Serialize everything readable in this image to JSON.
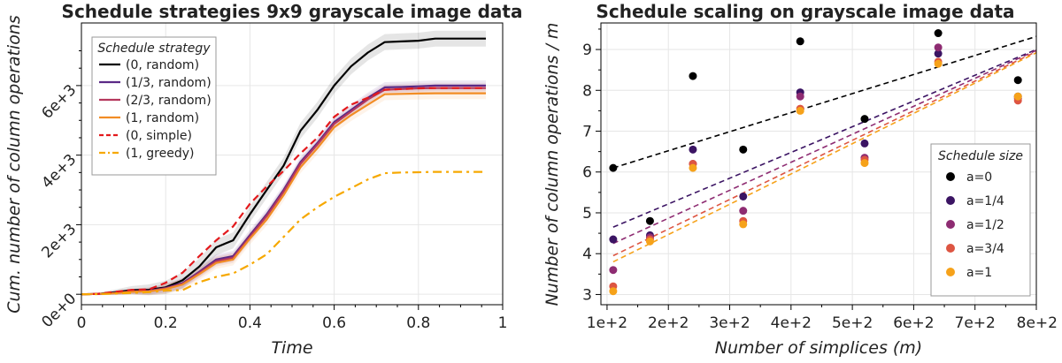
{
  "chart_data": [
    {
      "type": "line",
      "title": "Schedule strategies 9x9 grayscale image data",
      "xlabel": "Time",
      "ylabel": "Cum. number of column operations",
      "xlim": [
        0,
        1
      ],
      "ylim": [
        -300,
        7800
      ],
      "x_ticks": [
        0,
        0.2,
        0.4,
        0.6,
        0.8,
        1
      ],
      "x_tick_labels": [
        "0",
        "0.2",
        "0.4",
        "0.6",
        "0.8",
        "1"
      ],
      "y_ticks": [
        0,
        2000,
        4000,
        6000
      ],
      "y_tick_labels": [
        "0e+0",
        "2e+3",
        "4e+3",
        "6e+3"
      ],
      "grid": true,
      "legend_title": "Schedule strategy",
      "legend_position": "top-left",
      "x": [
        0,
        0.04,
        0.08,
        0.12,
        0.16,
        0.2,
        0.24,
        0.28,
        0.32,
        0.36,
        0.4,
        0.44,
        0.48,
        0.52,
        0.56,
        0.6,
        0.64,
        0.68,
        0.72,
        0.76,
        0.8,
        0.84,
        0.88,
        0.92,
        0.96
      ],
      "series": [
        {
          "name": "(0, random)",
          "color": "#000000",
          "dash": "solid",
          "band": 230,
          "values": [
            0,
            10,
            60,
            120,
            130,
            200,
            400,
            800,
            1350,
            1550,
            2300,
            3000,
            3700,
            4700,
            5300,
            6000,
            6550,
            6950,
            7250,
            7270,
            7290,
            7350,
            7350,
            7350,
            7350
          ]
        },
        {
          "name": "(1/3, random)",
          "color": "#5b2a86",
          "dash": "solid",
          "band": 150,
          "values": [
            0,
            10,
            40,
            80,
            100,
            180,
            320,
            650,
            1000,
            1100,
            1700,
            2300,
            3000,
            3800,
            4350,
            4950,
            5300,
            5650,
            5950,
            5960,
            5980,
            6000,
            6000,
            6000,
            6000
          ]
        },
        {
          "name": "(2/3, random)",
          "color": "#b5385d",
          "dash": "solid",
          "band": 150,
          "values": [
            0,
            10,
            40,
            80,
            90,
            170,
            300,
            620,
            950,
            1050,
            1650,
            2250,
            2950,
            3750,
            4300,
            4900,
            5250,
            5600,
            5880,
            5900,
            5920,
            5930,
            5930,
            5930,
            5930
          ]
        },
        {
          "name": "(1, random)",
          "color": "#f28d25",
          "dash": "solid",
          "band": 170,
          "values": [
            0,
            10,
            30,
            70,
            80,
            150,
            280,
            580,
            900,
            1000,
            1600,
            2150,
            2850,
            3650,
            4200,
            4800,
            5150,
            5450,
            5750,
            5760,
            5770,
            5780,
            5780,
            5780,
            5780
          ]
        },
        {
          "name": "(0, simple)",
          "color": "#e3191c",
          "dash": "8,5",
          "band": 0,
          "values": [
            0,
            15,
            70,
            130,
            140,
            330,
            620,
            1100,
            1550,
            1950,
            2600,
            3100,
            3550,
            4050,
            4500,
            5100,
            5450,
            5650,
            5880,
            5900,
            5920,
            5930,
            5930,
            5930,
            5930
          ]
        },
        {
          "name": "(1, greedy)",
          "color": "#f6a800",
          "dash": "10,5,3,5",
          "band": 0,
          "values": [
            0,
            5,
            20,
            40,
            60,
            110,
            120,
            350,
            500,
            600,
            850,
            1150,
            1650,
            2150,
            2500,
            2800,
            3050,
            3300,
            3480,
            3500,
            3510,
            3520,
            3520,
            3520,
            3520
          ]
        }
      ]
    },
    {
      "type": "scatter",
      "title": "Schedule scaling on grayscale image data",
      "xlabel": "Number of simplices (m)",
      "ylabel": "Number of column operations / m",
      "xlim": [
        90,
        800
      ],
      "ylim": [
        2.75,
        9.65
      ],
      "x_ticks": [
        100,
        200,
        300,
        400,
        500,
        600,
        700,
        800
      ],
      "x_tick_labels": [
        "1e+2",
        "2e+2",
        "3e+2",
        "4e+2",
        "5e+2",
        "6e+2",
        "7e+2",
        "8e+2"
      ],
      "y_ticks": [
        3,
        4,
        5,
        6,
        7,
        8,
        9
      ],
      "y_tick_labels": [
        "3",
        "4",
        "5",
        "6",
        "7",
        "8",
        "9"
      ],
      "grid": true,
      "legend_title": "Schedule size",
      "legend_position": "bottom-right",
      "x": [
        110,
        170,
        240,
        322,
        415,
        520,
        640,
        770
      ],
      "series": [
        {
          "name": "a=0",
          "color": "#000000",
          "values": [
            6.1,
            4.8,
            8.35,
            6.55,
            9.2,
            7.3,
            9.4,
            8.25
          ],
          "fit": [
            6.1,
            9.32
          ]
        },
        {
          "name": "a=1/4",
          "color": "#3b1463",
          "values": [
            4.35,
            4.45,
            6.55,
            5.4,
            7.95,
            6.7,
            8.9,
            7.85
          ],
          "fit": [
            4.65,
            9.0
          ]
        },
        {
          "name": "a=1/2",
          "color": "#8e2c72",
          "values": [
            3.6,
            4.4,
            6.2,
            5.05,
            7.85,
            6.35,
            9.05,
            7.8
          ],
          "fit": [
            4.25,
            8.98
          ]
        },
        {
          "name": "a=3/4",
          "color": "#dd5542",
          "values": [
            3.2,
            4.35,
            6.2,
            4.8,
            7.55,
            6.3,
            8.7,
            7.75
          ],
          "fit": [
            3.95,
            8.95
          ]
        },
        {
          "name": "a=1",
          "color": "#f6a21a",
          "values": [
            3.08,
            4.3,
            6.1,
            4.72,
            7.5,
            6.22,
            8.65,
            7.85
          ],
          "fit": [
            3.8,
            8.92
          ]
        }
      ]
    }
  ]
}
